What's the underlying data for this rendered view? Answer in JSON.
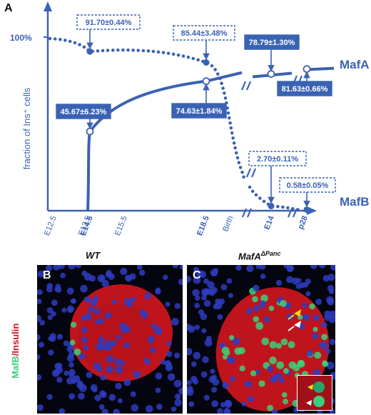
{
  "panel_labels": {
    "a": "A",
    "b": "B",
    "c": "C"
  },
  "conditions": {
    "wt": "WT",
    "mutant_base": "MafA",
    "mutant_sup": "ΔPanc"
  },
  "side_label": {
    "mafb": "MafB",
    "slash": "/",
    "insulin": "Insulin"
  },
  "colors": {
    "blue": "#3a62b4",
    "green": "#3ccf7a",
    "red": "#d8101e",
    "nuclei": "#2e3cbf"
  },
  "chart_data": {
    "type": "line",
    "ylabel": "fraction of Ins⁺ cells",
    "ytick": "100%",
    "stages": [
      "E12.5",
      "E13.5",
      "E14.5",
      "E15.5",
      "E18.5",
      "Birth",
      "E14",
      "p28"
    ],
    "bold_stages": [
      "E14.5",
      "E18.5",
      "E14",
      "p28"
    ],
    "series": [
      {
        "name": "MafA",
        "line": "solid",
        "points": [
          {
            "stage": "E14.5",
            "value": 45.67,
            "label": "45.67±6.23%"
          },
          {
            "stage": "E18.5",
            "value": 74.63,
            "label": "74.63±1.84%"
          },
          {
            "stage": "E14",
            "value": 78.79,
            "label": "78.79±1.30%"
          },
          {
            "stage": "p28",
            "value": 81.63,
            "label": "81.63±0.66%"
          }
        ]
      },
      {
        "name": "MafB",
        "line": "dotted",
        "points": [
          {
            "stage": "E14.5",
            "value": 91.7,
            "label": "91.70±0.44%"
          },
          {
            "stage": "E18.5",
            "value": 85.44,
            "label": "85.44±3.48%"
          },
          {
            "stage": "E14",
            "value": 2.7,
            "label": "2.70±0.11%"
          },
          {
            "stage": "p28",
            "value": 0.58,
            "label": "0.58±0.05%"
          }
        ]
      }
    ]
  }
}
